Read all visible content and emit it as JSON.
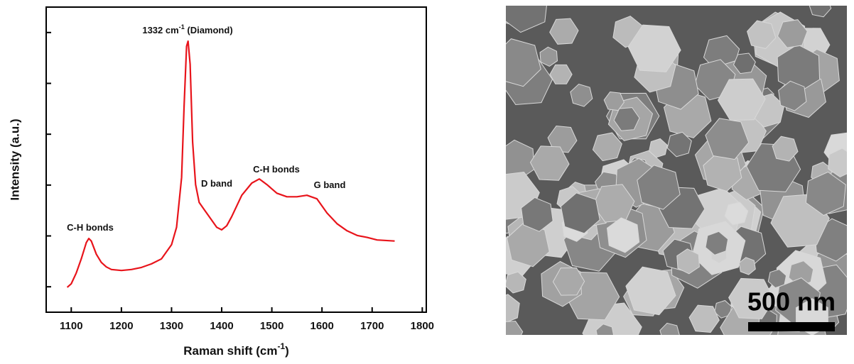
{
  "chart_data": {
    "type": "line",
    "x_label": [
      "Raman shift (cm",
      "-1",
      ")"
    ],
    "y_label": "Intensity (a.u.)",
    "x": [
      1092,
      1100,
      1110,
      1120,
      1130,
      1135,
      1140,
      1150,
      1160,
      1170,
      1180,
      1200,
      1220,
      1240,
      1260,
      1280,
      1300,
      1310,
      1320,
      1325,
      1330,
      1333,
      1337,
      1342,
      1348,
      1355,
      1365,
      1375,
      1390,
      1400,
      1410,
      1420,
      1440,
      1460,
      1475,
      1490,
      1510,
      1530,
      1550,
      1570,
      1590,
      1610,
      1630,
      1650,
      1670,
      1690,
      1710,
      1745
    ],
    "series": [
      {
        "color": "#e8141b",
        "values": [
          0.49,
          0.56,
          0.77,
          1.05,
          1.37,
          1.45,
          1.4,
          1.14,
          0.98,
          0.89,
          0.84,
          0.82,
          0.84,
          0.88,
          0.95,
          1.05,
          1.33,
          1.67,
          2.65,
          4.05,
          5.23,
          5.33,
          4.88,
          3.35,
          2.51,
          2.16,
          2.02,
          1.88,
          1.67,
          1.62,
          1.7,
          1.88,
          2.3,
          2.54,
          2.62,
          2.51,
          2.34,
          2.27,
          2.27,
          2.3,
          2.23,
          1.95,
          1.74,
          1.6,
          1.51,
          1.47,
          1.42,
          1.4
        ]
      }
    ],
    "xlim": [
      1050,
      1808
    ],
    "xticks": [
      1100,
      1200,
      1300,
      1400,
      1500,
      1600,
      1700,
      1800
    ],
    "ylim": [
      0,
      6
    ],
    "yticks": [
      0.5,
      1.5,
      2.5,
      3.5,
      4.5,
      5.5
    ],
    "annotations": [
      [
        "1332 cm",
        "-1",
        " (Diamond)"
      ],
      [
        "C-H bonds"
      ],
      [
        "D band"
      ],
      [
        "C-H bonds"
      ],
      [
        "G band"
      ]
    ]
  },
  "image": {
    "scale_bar": "500 nm"
  }
}
